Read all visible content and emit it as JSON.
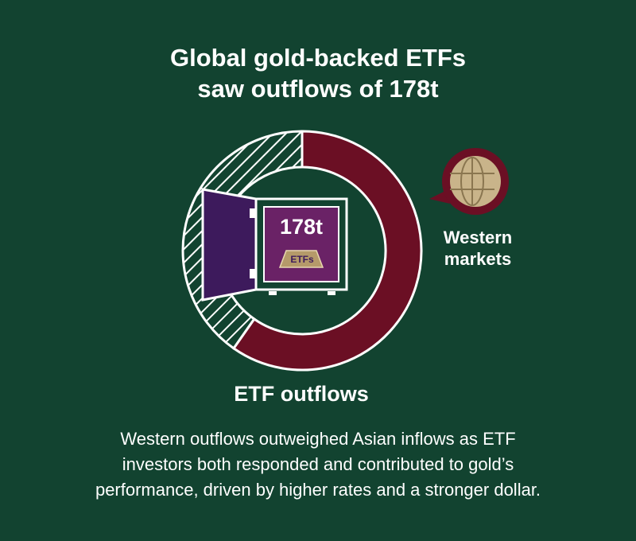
{
  "header": {
    "title_lines": [
      "Global gold-backed ETFs",
      "saw outflows of 178t"
    ]
  },
  "safe": {
    "amount": "178t",
    "bar_label": "ETFs"
  },
  "region": {
    "label_lines": [
      "Western",
      "markets"
    ]
  },
  "ring_label": "ETF outflows",
  "description": {
    "lines": [
      "Western outflows outweighed Asian inflows as ETF",
      "investors both responded and contributed to gold’s",
      "performance, driven by higher rates and a stronger dollar."
    ]
  }
}
